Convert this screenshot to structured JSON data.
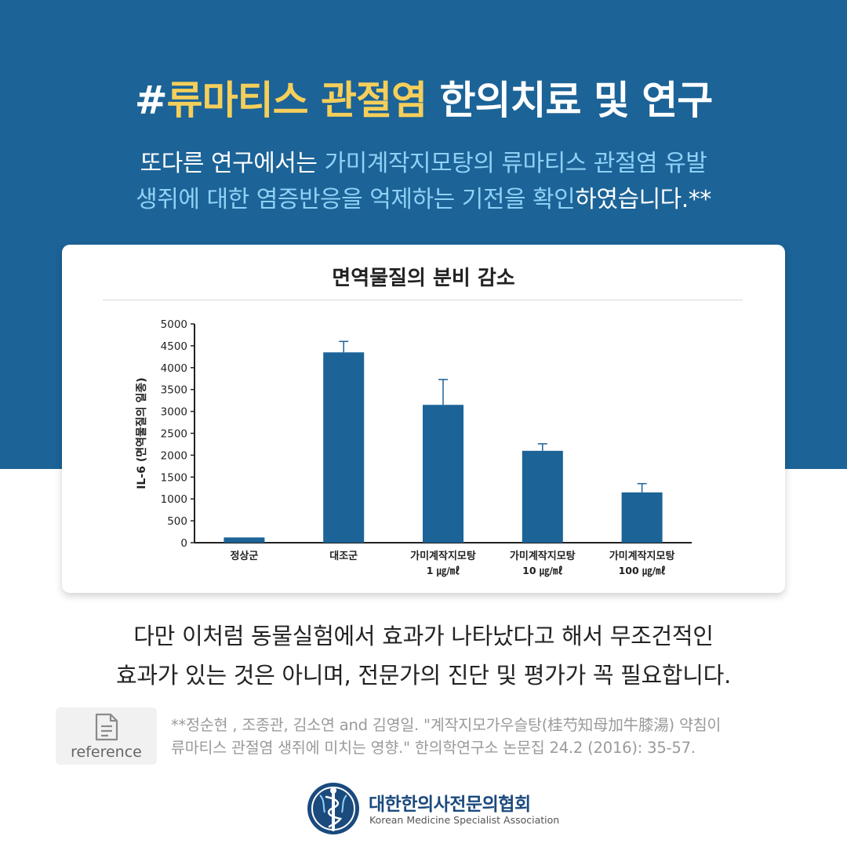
{
  "header": {
    "prefix": "#",
    "highlight": "류마티스 관절염",
    "rest": " 한의치료 및 연구"
  },
  "intro": {
    "line1_plain": "또다른 연구에서는 ",
    "line1_hl": "가미계작지모탕의 류마티스 관절염 유발",
    "line2_hl": "생쥐에 대한 염증반응을 억제하는 기전을 확인",
    "line2_plain": "하였습니다.**"
  },
  "chart_data": {
    "type": "bar",
    "title": "면역물질의 분비 감소",
    "ylabel": "IL-6 (면역물질의 일종)",
    "xlabel": "",
    "ylim": [
      0,
      5000
    ],
    "yticks": [
      0,
      500,
      1000,
      1500,
      2000,
      2500,
      3000,
      3500,
      4000,
      4500,
      5000
    ],
    "categories": [
      {
        "line1": "정상군",
        "line2": ""
      },
      {
        "line1": "대조군",
        "line2": ""
      },
      {
        "line1": "가미계작지모탕",
        "line2": "1 ㎍/㎖"
      },
      {
        "line1": "가미계작지모탕",
        "line2": "10 ㎍/㎖"
      },
      {
        "line1": "가미계작지모탕",
        "line2": "100 ㎍/㎖"
      }
    ],
    "values": [
      120,
      4350,
      3150,
      2100,
      1150
    ],
    "errors": [
      0,
      250,
      580,
      160,
      200
    ],
    "bar_color": "#1c6397",
    "grid": false
  },
  "note": {
    "line1": "다만 이처럼 동물실험에서 효과가 나타났다고 해서 무조건적인",
    "line2": "효과가 있는 것은 아니며, 전문가의 진단 및 평가가 꼭 필요합니다."
  },
  "reference": {
    "label": "reference",
    "icon": "document-icon",
    "line1": "**정순현 , 조종관, 김소연 and 김영일. \"계작지모가우슬탕(桂芍知母加牛膝湯) 약침이",
    "line2": "류마티스 관절염 생쥐에 미치는 영향.\" 한의학연구소 논문집 24.2 (2016): 35-57."
  },
  "footer": {
    "org_name": "대한한의사전문의협회",
    "org_sub": "Korean Medicine Specialist Association",
    "logo_icon": "caduceus-icon"
  },
  "colors": {
    "band": "#1c6397",
    "headline_highlight": "#f5cf5a",
    "intro_highlight": "#8fd2f7"
  }
}
